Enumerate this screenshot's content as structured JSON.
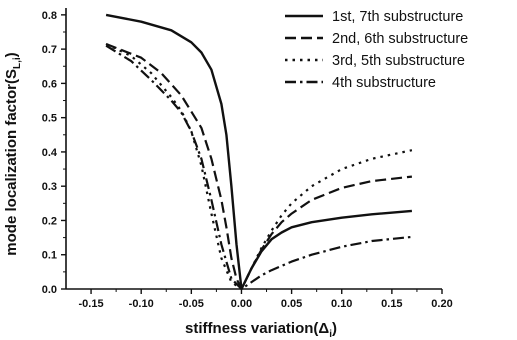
{
  "chart_data": {
    "type": "line",
    "title": "",
    "xlabel": "stiffness variation(Δ",
    "xlabel_sub": "i",
    "xlabel_close": ")",
    "ylabel": "mode localization factor(S",
    "ylabel_sub": "L,i",
    "ylabel_close": ")",
    "xlim": [
      -0.175,
      0.2
    ],
    "ylim": [
      0.0,
      0.82
    ],
    "xticks": [
      "-0.15",
      "-0.10",
      "-0.05",
      "0.00",
      "0.05",
      "0.10",
      "0.15",
      "0.20"
    ],
    "yticks": [
      "0.0",
      "0.1",
      "0.2",
      "0.3",
      "0.4",
      "0.5",
      "0.6",
      "0.7",
      "0.8"
    ],
    "grid": false,
    "legend_position": "top-right",
    "series": [
      {
        "name": "1st, 7th substructure",
        "style": "solid",
        "x": [
          -0.135,
          -0.1,
          -0.07,
          -0.05,
          -0.04,
          -0.03,
          -0.02,
          -0.015,
          -0.01,
          -0.005,
          0.0,
          0.01,
          0.02,
          0.03,
          0.04,
          0.05,
          0.07,
          0.1,
          0.13,
          0.17
        ],
        "y": [
          0.8,
          0.78,
          0.755,
          0.72,
          0.69,
          0.64,
          0.54,
          0.45,
          0.3,
          0.13,
          0.0,
          0.06,
          0.11,
          0.145,
          0.165,
          0.18,
          0.195,
          0.208,
          0.218,
          0.228
        ]
      },
      {
        "name": "2nd, 6th substructure",
        "style": "dash",
        "x": [
          -0.135,
          -0.1,
          -0.08,
          -0.06,
          -0.04,
          -0.03,
          -0.02,
          -0.015,
          -0.01,
          -0.005,
          0.0,
          0.01,
          0.02,
          0.03,
          0.04,
          0.05,
          0.07,
          0.1,
          0.13,
          0.17
        ],
        "y": [
          0.715,
          0.675,
          0.63,
          0.565,
          0.47,
          0.38,
          0.26,
          0.18,
          0.09,
          0.03,
          0.0,
          0.06,
          0.115,
          0.16,
          0.195,
          0.22,
          0.26,
          0.295,
          0.315,
          0.328
        ]
      },
      {
        "name": "3rd, 5th substructure",
        "style": "dot",
        "x": [
          -0.135,
          -0.11,
          -0.09,
          -0.07,
          -0.06,
          -0.05,
          -0.04,
          -0.03,
          -0.02,
          -0.01,
          0.0,
          0.01,
          0.02,
          0.03,
          0.04,
          0.05,
          0.07,
          0.1,
          0.13,
          0.17
        ],
        "y": [
          0.715,
          0.68,
          0.63,
          0.56,
          0.52,
          0.46,
          0.36,
          0.22,
          0.09,
          0.02,
          0.0,
          0.06,
          0.12,
          0.17,
          0.215,
          0.25,
          0.3,
          0.35,
          0.38,
          0.405
        ]
      },
      {
        "name": "4th substructure",
        "style": "dashdot",
        "x": [
          -0.135,
          -0.11,
          -0.09,
          -0.07,
          -0.06,
          -0.05,
          -0.04,
          -0.03,
          -0.02,
          -0.01,
          0.0,
          0.01,
          0.02,
          0.03,
          0.05,
          0.07,
          0.1,
          0.13,
          0.17
        ],
        "y": [
          0.71,
          0.665,
          0.61,
          0.55,
          0.515,
          0.46,
          0.38,
          0.26,
          0.13,
          0.03,
          0.0,
          0.02,
          0.04,
          0.055,
          0.08,
          0.1,
          0.123,
          0.14,
          0.152
        ]
      }
    ]
  }
}
